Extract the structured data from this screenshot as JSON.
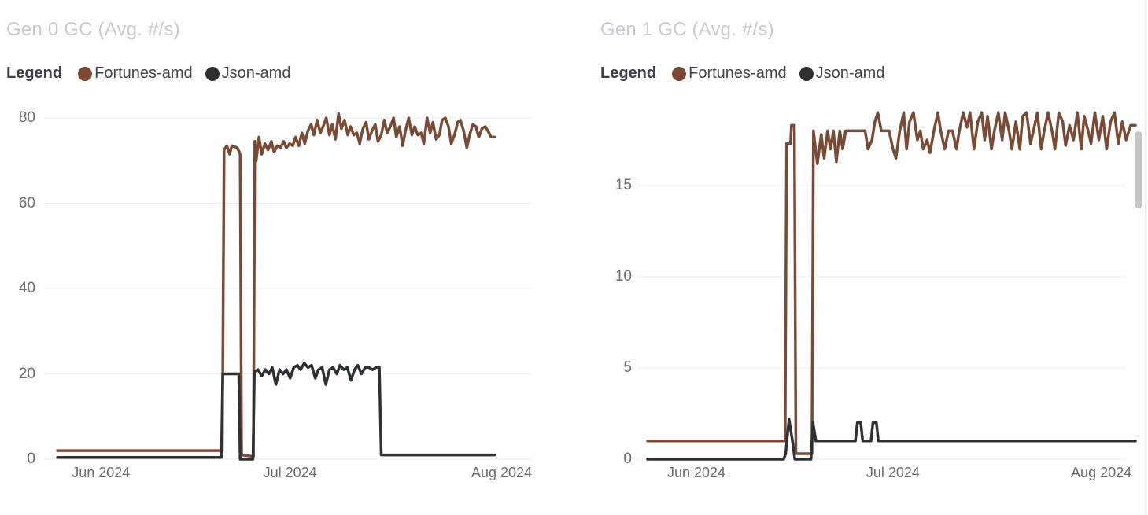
{
  "page": {
    "background": "#ffffff",
    "scrollbar_color": "#c4c4c4"
  },
  "chart_data": [
    {
      "type": "line",
      "title": "Gen 0 GC (Avg. #/s)",
      "legend_label": "Legend",
      "x_tick_labels": [
        "Jun 2024",
        "Jul 2024",
        "Aug 2024"
      ],
      "x_tick_pct": [
        9.5,
        50.8,
        97
      ],
      "y_ticks": [
        0,
        20,
        40,
        60,
        80
      ],
      "ylim": [
        0,
        84.6
      ],
      "grid": true,
      "legend_position": "top",
      "series": [
        {
          "name": "Fortunes-amd",
          "color": "#7a4a35",
          "points": [
            [
              0,
              2
            ],
            [
              36,
              2
            ],
            [
              36.4,
              72.5
            ],
            [
              37,
              73.5
            ],
            [
              37.6,
              71.5
            ],
            [
              38.1,
              73.5
            ],
            [
              39.3,
              73
            ],
            [
              39.9,
              71.5
            ],
            [
              40.2,
              1
            ],
            [
              42.8,
              0.6
            ],
            [
              43.1,
              74.5
            ],
            [
              43.4,
              70
            ],
            [
              44,
              75.5
            ],
            [
              44.6,
              71.5
            ],
            [
              45.3,
              74
            ],
            [
              46,
              72.5
            ],
            [
              46.7,
              74.5
            ],
            [
              47.3,
              72
            ],
            [
              48,
              73.5
            ],
            [
              48.7,
              73
            ],
            [
              49.4,
              74.5
            ],
            [
              50,
              73
            ],
            [
              50.7,
              74
            ],
            [
              51.4,
              73.5
            ],
            [
              52,
              75.5
            ],
            [
              52.7,
              73.5
            ],
            [
              53.4,
              76.5
            ],
            [
              54,
              74
            ],
            [
              54.7,
              77
            ],
            [
              55.4,
              78.5
            ],
            [
              56,
              76
            ],
            [
              56.7,
              79.5
            ],
            [
              57.4,
              76.5
            ],
            [
              58,
              78
            ],
            [
              58.7,
              80
            ],
            [
              59.4,
              76
            ],
            [
              60,
              78.5
            ],
            [
              60.7,
              75
            ],
            [
              61.4,
              81
            ],
            [
              62,
              77.5
            ],
            [
              62.7,
              79.5
            ],
            [
              63.4,
              76
            ],
            [
              64,
              78
            ],
            [
              64.7,
              76
            ],
            [
              65.4,
              76.5
            ],
            [
              66,
              74
            ],
            [
              66.7,
              77.5
            ],
            [
              67.4,
              79
            ],
            [
              68,
              75
            ],
            [
              68.7,
              77
            ],
            [
              69.4,
              78.5
            ],
            [
              70,
              74.5
            ],
            [
              70.7,
              76
            ],
            [
              71.4,
              79.5
            ],
            [
              72,
              76.5
            ],
            [
              72.7,
              78
            ],
            [
              73.4,
              80
            ],
            [
              74,
              75.5
            ],
            [
              74.7,
              78
            ],
            [
              75.4,
              73.5
            ],
            [
              76,
              77
            ],
            [
              76.7,
              80
            ],
            [
              77.4,
              76
            ],
            [
              78,
              78
            ],
            [
              78.7,
              76
            ],
            [
              79.4,
              76.5
            ],
            [
              80,
              74
            ],
            [
              80.7,
              80
            ],
            [
              81.4,
              76.5
            ],
            [
              82,
              79
            ],
            [
              82.7,
              75
            ],
            [
              83.4,
              76
            ],
            [
              84,
              79.5
            ],
            [
              84.7,
              80
            ],
            [
              85.4,
              78
            ],
            [
              86,
              74
            ],
            [
              86.7,
              76
            ],
            [
              87.4,
              79
            ],
            [
              88,
              79.5
            ],
            [
              88.7,
              77
            ],
            [
              89.4,
              73
            ],
            [
              90,
              76
            ],
            [
              90.7,
              78.5
            ],
            [
              91.4,
              78
            ],
            [
              92,
              75.5
            ],
            [
              92.7,
              77.5
            ],
            [
              93.4,
              78
            ],
            [
              94,
              77
            ],
            [
              94.7,
              75.5
            ],
            [
              95.5,
              75.5
            ]
          ]
        },
        {
          "name": "Json-amd",
          "color": "#2d3136",
          "points": [
            [
              0,
              0.4
            ],
            [
              35.8,
              0.4
            ],
            [
              36.1,
              20
            ],
            [
              39.6,
              20
            ],
            [
              39.9,
              0
            ],
            [
              42.7,
              0
            ],
            [
              43,
              20.5
            ],
            [
              43.8,
              21
            ],
            [
              44.6,
              19.5
            ],
            [
              45.4,
              21
            ],
            [
              46.2,
              20
            ],
            [
              46.9,
              21.5
            ],
            [
              47.7,
              17.5
            ],
            [
              48.5,
              21
            ],
            [
              49.3,
              20
            ],
            [
              50,
              21
            ],
            [
              50.8,
              19
            ],
            [
              51.6,
              21.5
            ],
            [
              52.4,
              22
            ],
            [
              53.1,
              21
            ],
            [
              53.9,
              22.5
            ],
            [
              54.7,
              21.5
            ],
            [
              55.5,
              22
            ],
            [
              56.3,
              19
            ],
            [
              57,
              21
            ],
            [
              57.8,
              21.5
            ],
            [
              58.6,
              17.5
            ],
            [
              59.4,
              21
            ],
            [
              60.2,
              21.5
            ],
            [
              61,
              20
            ],
            [
              61.7,
              22
            ],
            [
              62.5,
              21
            ],
            [
              63.3,
              21.5
            ],
            [
              64.1,
              18.5
            ],
            [
              64.9,
              21
            ],
            [
              65.6,
              22
            ],
            [
              66.4,
              20
            ],
            [
              67.2,
              21.5
            ],
            [
              68,
              21.5
            ],
            [
              68.8,
              21
            ],
            [
              69.6,
              21.5
            ],
            [
              70.3,
              21.5
            ],
            [
              70.7,
              1
            ],
            [
              95.5,
              1
            ]
          ]
        }
      ]
    },
    {
      "type": "line",
      "title": "Gen 1 GC (Avg. #/s)",
      "legend_label": "Legend",
      "x_tick_labels": [
        "Jun 2024",
        "Jul 2024",
        "Aug 2024"
      ],
      "x_tick_pct": [
        10,
        50.3,
        93
      ],
      "y_ticks": [
        0,
        5,
        10,
        15
      ],
      "ylim": [
        0,
        19.8
      ],
      "grid": true,
      "legend_position": "top",
      "series": [
        {
          "name": "Fortunes-amd",
          "color": "#7a4a35",
          "points": [
            [
              0,
              1
            ],
            [
              28.2,
              1
            ],
            [
              28.5,
              17.3
            ],
            [
              29.3,
              17.3
            ],
            [
              29.5,
              18.3
            ],
            [
              30.1,
              18.3
            ],
            [
              30.4,
              0.3
            ],
            [
              33.7,
              0.3
            ],
            [
              34,
              18
            ],
            [
              34.8,
              16.2
            ],
            [
              35.6,
              17.8
            ],
            [
              36.2,
              16.5
            ],
            [
              36.9,
              18
            ],
            [
              37.5,
              17
            ],
            [
              38.1,
              18
            ],
            [
              38.7,
              16.3
            ],
            [
              39.4,
              18
            ],
            [
              40,
              17
            ],
            [
              40.6,
              18
            ],
            [
              41.4,
              18
            ],
            [
              43,
              18
            ],
            [
              44.6,
              18
            ],
            [
              45.2,
              17
            ],
            [
              46,
              17.5
            ],
            [
              46.6,
              18.5
            ],
            [
              47.2,
              19
            ],
            [
              47.9,
              18
            ],
            [
              49.5,
              18
            ],
            [
              50.3,
              17
            ],
            [
              50.9,
              16.5
            ],
            [
              51.7,
              18
            ],
            [
              52.5,
              19
            ],
            [
              53.1,
              17
            ],
            [
              53.7,
              18.5
            ],
            [
              54.5,
              19
            ],
            [
              55.3,
              17.5
            ],
            [
              55.9,
              18
            ],
            [
              56.5,
              17
            ],
            [
              57.3,
              17.5
            ],
            [
              57.9,
              16.8
            ],
            [
              58.7,
              18
            ],
            [
              59.5,
              19
            ],
            [
              60.1,
              18
            ],
            [
              60.9,
              17
            ],
            [
              61.7,
              18
            ],
            [
              62.5,
              18
            ],
            [
              63.3,
              17
            ],
            [
              63.9,
              18
            ],
            [
              64.7,
              19
            ],
            [
              65.5,
              18.2
            ],
            [
              66.1,
              19
            ],
            [
              66.9,
              17
            ],
            [
              67.7,
              18.5
            ],
            [
              68.5,
              19
            ],
            [
              69.1,
              17.5
            ],
            [
              69.7,
              18.8
            ],
            [
              70.5,
              17
            ],
            [
              71.1,
              18
            ],
            [
              71.9,
              19
            ],
            [
              72.7,
              17.5
            ],
            [
              73.3,
              19
            ],
            [
              74.1,
              18
            ],
            [
              74.7,
              17
            ],
            [
              75.5,
              18.5
            ],
            [
              76.3,
              17
            ],
            [
              76.9,
              18.8
            ],
            [
              77.7,
              19
            ],
            [
              78.5,
              17.3
            ],
            [
              79.1,
              18
            ],
            [
              79.9,
              19
            ],
            [
              80.7,
              17
            ],
            [
              81.3,
              18
            ],
            [
              82.1,
              19
            ],
            [
              82.9,
              18
            ],
            [
              83.5,
              17
            ],
            [
              84.3,
              19
            ],
            [
              85.1,
              18.5
            ],
            [
              85.7,
              17.2
            ],
            [
              86.5,
              18.3
            ],
            [
              87.3,
              17.5
            ],
            [
              88.1,
              19
            ],
            [
              88.9,
              17
            ],
            [
              89.5,
              18.8
            ],
            [
              90.3,
              18
            ],
            [
              90.9,
              17.3
            ],
            [
              91.7,
              19
            ],
            [
              92.5,
              17.5
            ],
            [
              93.3,
              18.8
            ],
            [
              94.1,
              17
            ],
            [
              94.9,
              18.5
            ],
            [
              95.7,
              19
            ],
            [
              96.5,
              17.3
            ],
            [
              97.3,
              18.5
            ],
            [
              98.1,
              17.5
            ],
            [
              99,
              18.3
            ],
            [
              100,
              18.3
            ]
          ]
        },
        {
          "name": "Json-amd",
          "color": "#2d3136",
          "points": [
            [
              0,
              0
            ],
            [
              27.9,
              0
            ],
            [
              28.3,
              0.3
            ],
            [
              29,
              2.2
            ],
            [
              29.7,
              1
            ],
            [
              30.2,
              0
            ],
            [
              33.5,
              0
            ],
            [
              33.9,
              2
            ],
            [
              34.5,
              1
            ],
            [
              42.6,
              1
            ],
            [
              43,
              2
            ],
            [
              43.7,
              2
            ],
            [
              44.1,
              1
            ],
            [
              45.8,
              1
            ],
            [
              46.2,
              2
            ],
            [
              46.9,
              2
            ],
            [
              47.3,
              1
            ],
            [
              100,
              1
            ]
          ]
        }
      ]
    }
  ]
}
